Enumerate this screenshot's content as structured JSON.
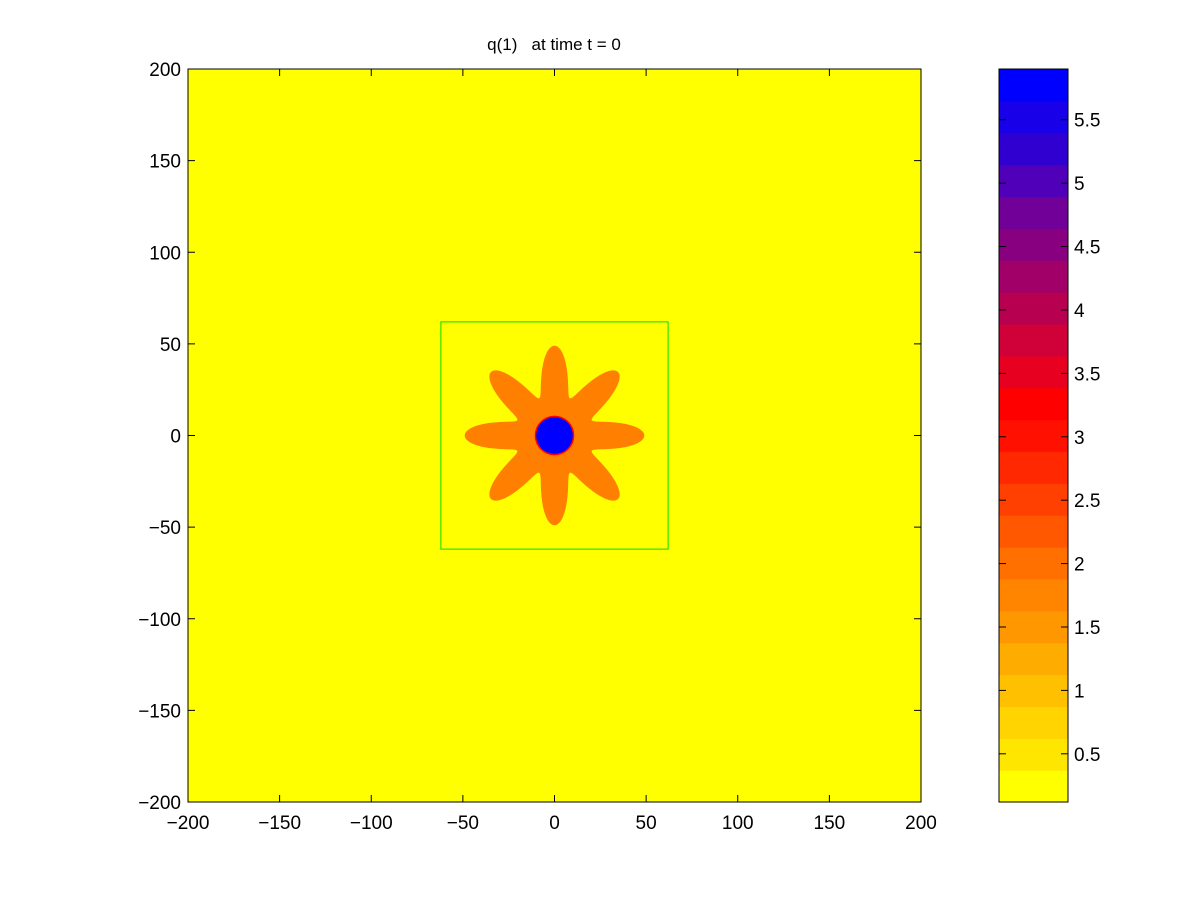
{
  "chart_data": {
    "type": "heatmap",
    "title": "q(1)   at time t = 0",
    "xlabel": "",
    "ylabel": "",
    "xlim": [
      -200,
      200
    ],
    "ylim": [
      -200,
      200
    ],
    "x_ticks": [
      -200,
      -150,
      -100,
      -50,
      0,
      50,
      100,
      150,
      200
    ],
    "y_ticks": [
      -200,
      -150,
      -100,
      -50,
      0,
      50,
      100,
      150,
      200
    ],
    "grid": false,
    "colorbar": {
      "range": [
        0.12,
        5.9
      ],
      "ticks": [
        0.5,
        1,
        1.5,
        2,
        2.5,
        3,
        3.5,
        4,
        4.5,
        5,
        5.5
      ],
      "tick_labels": [
        "0.5",
        "1",
        "1.5",
        "2",
        "2.5",
        "3",
        "3.5",
        "4",
        "4.5",
        "5",
        "5.5"
      ],
      "colors_bottom_to_top": [
        "#ffff00",
        "#ffe600",
        "#ffd400",
        "#ffc000",
        "#ffac00",
        "#ff9800",
        "#ff8400",
        "#ff7000",
        "#ff5800",
        "#ff4000",
        "#ff2800",
        "#ff1000",
        "#ff0000",
        "#e80020",
        "#d00038",
        "#b80050",
        "#a00068",
        "#880080",
        "#700098",
        "#5000b8",
        "#3000d0",
        "#1800e8",
        "#0000ff"
      ]
    },
    "field": {
      "background_value": 0.12,
      "background_color": "#ffff00",
      "star": {
        "center": [
          0,
          0
        ],
        "value": 1.6,
        "color": "#ff8000",
        "arms": 8,
        "mean_radius": 35.5,
        "amplitude": 13.5
      },
      "core": {
        "center": [
          0,
          0
        ],
        "radius": 10,
        "value": 5.9,
        "color": "#0000ff",
        "edge_color": "#ff0000"
      }
    },
    "annotations": [
      {
        "type": "rectangle",
        "x_range": [
          -62,
          62
        ],
        "y_range": [
          -62,
          62
        ],
        "color": "#00e000"
      }
    ]
  }
}
